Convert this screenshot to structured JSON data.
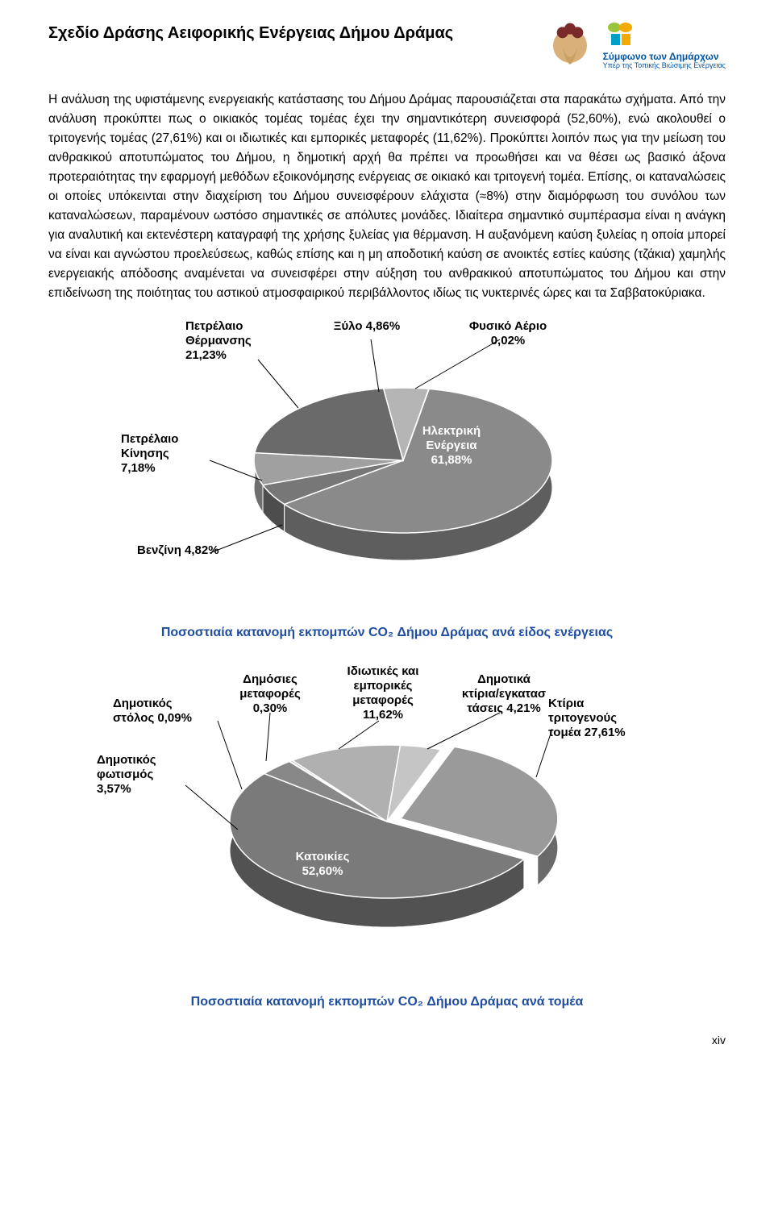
{
  "document": {
    "title": "Σχεδίο Δράσης Αειφορικής Ενέργειας Δήμου Δράμας",
    "body_paragraph": "Η ανάλυση της υφιστάμενης ενεργειακής κατάστασης του Δήμου Δράμας παρουσιάζεται στα παρακάτω σχήματα. Από την ανάλυση προκύπτει πως ο οικιακός τομέας τομέας έχει την σημαντικότερη συνεισφορά (52,60%), ενώ ακολουθεί ο τριτογενής τομέας (27,61%) και οι ιδιωτικές και εμπορικές μεταφορές (11,62%). Προκύπτει λοιπόν πως για την μείωση του ανθρακικού αποτυπώματος του Δήμου, η δημοτική αρχή θα πρέπει να προωθήσει και να θέσει ως βασικό άξονα προτεραιότητας την εφαρμογή μεθόδων εξοικονόμησης ενέργειας σε οικιακό και τριτογενή τομέα. Επίσης, οι καταναλώσεις οι οποίες υπόκεινται στην διαχείριση του Δήμου συνεισφέρουν ελάχιστα (≈8%) στην διαμόρφωση του συνόλου των καταναλώσεων, παραμένουν ωστόσο σημαντικές σε απόλυτες μονάδες. Ιδιαίτερα σημαντικό συμπέρασμα είναι η ανάγκη για αναλυτική και εκτενέστερη καταγραφή της χρήσης ξυλείας για θέρμανση. Η αυξανόμενη καύση ξυλείας η οποία μπορεί να είναι και αγνώστου προελεύσεως, καθώς επίσης και η μη αποδοτική καύση σε ανοικτές εστίες καύσης (τζάκια) χαμηλής ενεργειακής απόδοσης αναμένεται να συνεισφέρει στην αύξηση του ανθρακικού αποτυπώματος του Δήμου και στην επιδείνωση της ποιότητας του αστικού ατμοσφαιρικού περιβάλλοντος ιδίως τις νυκτερινές ώρες και τα Σαββατοκύριακα.",
    "page_number": "xiv"
  },
  "header_logos": {
    "left_logo_name": "drama-municipality-logo",
    "right_logo_title": "Σύμφωνο\nτων Δημάρχων",
    "right_logo_sub": "Υπέρ της Τοπικής\nΒιώσιμης Ενέργειας"
  },
  "chart1": {
    "type": "pie-3d",
    "title": "Ποσοστιαία κατανομή εκπομπών CO₂ Δήμου Δράμας ανά είδος ενέργειας",
    "background_color": "#ffffff",
    "label_fontsize": 15,
    "label_fontweight": "bold",
    "caption_color": "#1f4ea1",
    "slices": [
      {
        "label": "Ηλεκτρική\nΕνέργεια\n61,88%",
        "value": 61.88,
        "color_top": "#8a8a8a",
        "color_side": "#5e5e5e",
        "in_slice": true
      },
      {
        "label": "Βενζίνη 4,82%",
        "value": 4.82,
        "color_top": "#777777",
        "color_side": "#4d4d4d",
        "in_slice": false
      },
      {
        "label": "Πετρέλαιο\nΚίνησης\n7,18%",
        "value": 7.18,
        "color_top": "#a0a0a0",
        "color_side": "#6f6f6f",
        "in_slice": false
      },
      {
        "label": "Πετρέλαιο\nΘέρμανσης\n21,23%",
        "value": 21.23,
        "color_top": "#6a6a6a",
        "color_side": "#444444",
        "in_slice": false
      },
      {
        "label": "Ξύλο 4,86%",
        "value": 4.86,
        "color_top": "#b5b5b5",
        "color_side": "#888888",
        "in_slice": false
      },
      {
        "label": "Φυσικό Αέριο\n0,02%",
        "value": 0.02,
        "color_top": "#cccccc",
        "color_side": "#999999",
        "in_slice": false
      }
    ]
  },
  "chart2": {
    "type": "pie-3d",
    "title": "Ποσοστιαία κατανομή εκπομπών CO₂ Δήμου Δράμας ανά τομέα",
    "background_color": "#ffffff",
    "label_fontsize": 15,
    "label_fontweight": "bold",
    "caption_color": "#1f4ea1",
    "slices": [
      {
        "label": "Κτίρια\nτριτογενούς\nτομέα 27,61%",
        "value": 27.61,
        "color_top": "#9a9a9a",
        "color_side": "#6a6a6a",
        "in_slice": false,
        "exploded": true
      },
      {
        "label": "Κατοικίες\n52,60%",
        "value": 52.6,
        "color_top": "#7a7a7a",
        "color_side": "#525252",
        "in_slice": true
      },
      {
        "label": "Δημοτικός\nφωτισμός\n3,57%",
        "value": 3.57,
        "color_top": "#888888",
        "color_side": "#5a5a5a",
        "in_slice": false
      },
      {
        "label": "Δημοτικός\nστόλος 0,09%",
        "value": 0.09,
        "color_top": "#aaaaaa",
        "color_side": "#777777",
        "in_slice": false
      },
      {
        "label": "Δημόσιες\nμεταφορές\n0,30%",
        "value": 0.3,
        "color_top": "#bbbbbb",
        "color_side": "#888888",
        "in_slice": false
      },
      {
        "label": "Ιδιωτικές και\nεμπορικές\nμεταφορές\n11,62%",
        "value": 11.62,
        "color_top": "#b0b0b0",
        "color_side": "#7e7e7e",
        "in_slice": false
      },
      {
        "label": "Δημοτικά\nκτίρια/εγκατασ\nτάσεις 4,21%",
        "value": 4.21,
        "color_top": "#c5c5c5",
        "color_side": "#929292",
        "in_slice": false
      }
    ]
  }
}
